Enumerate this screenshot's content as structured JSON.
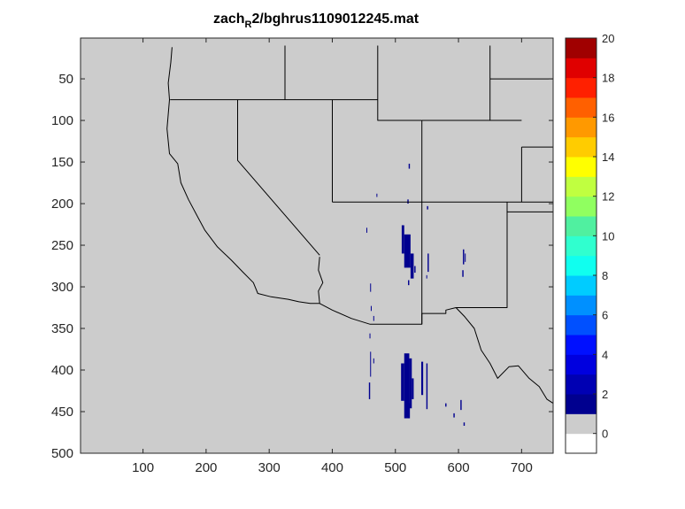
{
  "chart_data": {
    "type": "heatmap",
    "title": "zach_R2/bghrus1109012245.mat",
    "title_parts": {
      "before": "zach",
      "subscript": "R",
      "after": "2/bghrus1109012245.mat"
    },
    "xlabel": "",
    "ylabel": "",
    "xlim": [
      1,
      750
    ],
    "ylim": [
      500,
      1
    ],
    "x_reversed": false,
    "y_reversed": true,
    "xticks": [
      100,
      200,
      300,
      400,
      500,
      600,
      700
    ],
    "yticks": [
      50,
      100,
      150,
      200,
      250,
      300,
      350,
      400,
      450,
      500
    ],
    "grid": false,
    "background_value": 0,
    "background_color": "#cccccc",
    "colorbar": {
      "location": "right",
      "range": [
        -1,
        20
      ],
      "ticks": [
        0,
        2,
        4,
        6,
        8,
        10,
        12,
        14,
        16,
        18,
        20
      ],
      "segments": [
        {
          "from": -1,
          "to": 0,
          "color": "#ffffff"
        },
        {
          "from": 0,
          "to": 1,
          "color": "#cccccc"
        },
        {
          "from": 1,
          "to": 2,
          "color": "#00008f"
        },
        {
          "from": 2,
          "to": 3,
          "color": "#0000b3"
        },
        {
          "from": 3,
          "to": 4,
          "color": "#0000df"
        },
        {
          "from": 4,
          "to": 5,
          "color": "#0010ff"
        },
        {
          "from": 5,
          "to": 6,
          "color": "#0050ff"
        },
        {
          "from": 6,
          "to": 7,
          "color": "#0090ff"
        },
        {
          "from": 7,
          "to": 8,
          "color": "#00ccff"
        },
        {
          "from": 8,
          "to": 9,
          "color": "#10ffef"
        },
        {
          "from": 9,
          "to": 10,
          "color": "#30ffcf"
        },
        {
          "from": 10,
          "to": 11,
          "color": "#50f0a0"
        },
        {
          "from": 11,
          "to": 12,
          "color": "#90ff60"
        },
        {
          "from": 12,
          "to": 13,
          "color": "#c0ff40"
        },
        {
          "from": 13,
          "to": 14,
          "color": "#ffff00"
        },
        {
          "from": 14,
          "to": 15,
          "color": "#ffcc00"
        },
        {
          "from": 15,
          "to": 16,
          "color": "#ff9900"
        },
        {
          "from": 16,
          "to": 17,
          "color": "#ff6000"
        },
        {
          "from": 17,
          "to": 18,
          "color": "#ff2000"
        },
        {
          "from": 18,
          "to": 19,
          "color": "#e00000"
        },
        {
          "from": 19,
          "to": 20,
          "color": "#a00000"
        }
      ]
    },
    "echo_color": "#00008f",
    "echoes": [
      {
        "x": 521,
        "y": 152,
        "w": 2,
        "h": 6,
        "value": 1
      },
      {
        "x": 519,
        "y": 195,
        "w": 2,
        "h": 5,
        "value": 1
      },
      {
        "x": 470,
        "y": 188,
        "w": 1,
        "h": 4,
        "value": 1
      },
      {
        "x": 550,
        "y": 203,
        "w": 2,
        "h": 4,
        "value": 1
      },
      {
        "x": 454,
        "y": 229,
        "w": 1,
        "h": 6,
        "value": 1
      },
      {
        "x": 510,
        "y": 226,
        "w": 4,
        "h": 34,
        "value": 1
      },
      {
        "x": 514,
        "y": 237,
        "w": 10,
        "h": 40,
        "value": 1
      },
      {
        "x": 524,
        "y": 260,
        "w": 5,
        "h": 30,
        "value": 1
      },
      {
        "x": 530,
        "y": 275,
        "w": 2,
        "h": 8,
        "value": 1
      },
      {
        "x": 551,
        "y": 260,
        "w": 2,
        "h": 22,
        "value": 1
      },
      {
        "x": 549,
        "y": 286,
        "w": 1,
        "h": 4,
        "value": 1
      },
      {
        "x": 521,
        "y": 255,
        "w": 2,
        "h": 10,
        "value": 1
      },
      {
        "x": 520,
        "y": 292,
        "w": 2,
        "h": 6,
        "value": 1
      },
      {
        "x": 460,
        "y": 296,
        "w": 1,
        "h": 10,
        "value": 1
      },
      {
        "x": 461,
        "y": 323,
        "w": 1,
        "h": 6,
        "value": 1
      },
      {
        "x": 465,
        "y": 335,
        "w": 1,
        "h": 6,
        "value": 1
      },
      {
        "x": 459,
        "y": 356,
        "w": 1,
        "h": 6,
        "value": 1
      },
      {
        "x": 607,
        "y": 255,
        "w": 2,
        "h": 18,
        "value": 1
      },
      {
        "x": 610,
        "y": 260,
        "w": 1,
        "h": 10,
        "value": 1
      },
      {
        "x": 606,
        "y": 280,
        "w": 2,
        "h": 8,
        "value": 1
      },
      {
        "x": 460,
        "y": 378,
        "w": 1,
        "h": 30,
        "value": 1
      },
      {
        "x": 465,
        "y": 386,
        "w": 1,
        "h": 6,
        "value": 1
      },
      {
        "x": 458,
        "y": 415,
        "w": 2,
        "h": 20,
        "value": 1
      },
      {
        "x": 509,
        "y": 392,
        "w": 5,
        "h": 45,
        "value": 1
      },
      {
        "x": 514,
        "y": 380,
        "w": 8,
        "h": 78,
        "value": 1
      },
      {
        "x": 522,
        "y": 386,
        "w": 4,
        "h": 60,
        "value": 1
      },
      {
        "x": 526,
        "y": 410,
        "w": 3,
        "h": 25,
        "value": 1
      },
      {
        "x": 541,
        "y": 390,
        "w": 3,
        "h": 40,
        "value": 1
      },
      {
        "x": 549,
        "y": 392,
        "w": 2,
        "h": 55,
        "value": 1
      },
      {
        "x": 579,
        "y": 440,
        "w": 2,
        "h": 4,
        "value": 1
      },
      {
        "x": 592,
        "y": 452,
        "w": 2,
        "h": 5,
        "value": 1
      },
      {
        "x": 603,
        "y": 436,
        "w": 2,
        "h": 12,
        "value": 1
      },
      {
        "x": 608,
        "y": 463,
        "w": 2,
        "h": 4,
        "value": 1
      },
      {
        "x": 520,
        "y": 440,
        "w": 3,
        "h": 18,
        "value": 1
      }
    ],
    "boundaries": [
      {
        "name": "west-coast",
        "points": [
          [
            146,
            12
          ],
          [
            144,
            30
          ],
          [
            140,
            55
          ],
          [
            142,
            75
          ],
          [
            138,
            110
          ],
          [
            142,
            140
          ],
          [
            155,
            152
          ],
          [
            160,
            175
          ],
          [
            172,
            195
          ],
          [
            186,
            215
          ],
          [
            198,
            232
          ],
          [
            218,
            252
          ],
          [
            240,
            268
          ],
          [
            258,
            282
          ],
          [
            275,
            295
          ],
          [
            282,
            308
          ],
          [
            303,
            312
          ],
          [
            330,
            315
          ],
          [
            347,
            318
          ],
          [
            365,
            320
          ],
          [
            380,
            320
          ],
          [
            378,
            305
          ],
          [
            385,
            295
          ],
          [
            378,
            280
          ],
          [
            380,
            264
          ]
        ]
      },
      {
        "name": "ca-nv-border",
        "points": [
          [
            250,
            75
          ],
          [
            250,
            148
          ],
          [
            380,
            262
          ]
        ]
      },
      {
        "name": "border-40n",
        "points": [
          [
            143,
            75
          ],
          [
            472,
            75
          ]
        ]
      },
      {
        "name": "or-id-border",
        "points": [
          [
            325,
            10
          ],
          [
            325,
            75
          ]
        ]
      },
      {
        "name": "nv-ut-border",
        "points": [
          [
            400,
            75
          ],
          [
            400,
            198
          ]
        ]
      },
      {
        "name": "ut-wy-border",
        "points": [
          [
            472,
            10
          ],
          [
            472,
            100
          ],
          [
            542,
            100
          ]
        ]
      },
      {
        "name": "wy-ne-border",
        "points": [
          [
            650,
            10
          ],
          [
            650,
            100
          ]
        ]
      },
      {
        "name": "wy-co-north",
        "points": [
          [
            542,
            100
          ],
          [
            700,
            100
          ]
        ]
      },
      {
        "name": "co-ne-border",
        "points": [
          [
            650,
            50
          ],
          [
            750,
            50
          ]
        ]
      },
      {
        "name": "ne-ks-border",
        "points": [
          [
            700,
            132
          ],
          [
            750,
            132
          ]
        ]
      },
      {
        "name": "co-ks-border",
        "points": [
          [
            700,
            132
          ],
          [
            700,
            198
          ]
        ]
      },
      {
        "name": "border-37n",
        "points": [
          [
            400,
            198
          ],
          [
            750,
            198
          ]
        ]
      },
      {
        "name": "az-nm-border",
        "points": [
          [
            542,
            100
          ],
          [
            542,
            345
          ]
        ]
      },
      {
        "name": "nm-ok-tx-border",
        "points": [
          [
            677,
            198
          ],
          [
            677,
            210
          ],
          [
            750,
            210
          ]
        ]
      },
      {
        "name": "nm-tx-border",
        "points": [
          [
            677,
            198
          ],
          [
            677,
            325
          ],
          [
            596,
            325
          ]
        ]
      },
      {
        "name": "mexico-border",
        "points": [
          [
            380,
            320
          ],
          [
            400,
            328
          ],
          [
            430,
            338
          ],
          [
            460,
            345
          ],
          [
            500,
            345
          ],
          [
            542,
            345
          ],
          [
            542,
            332
          ],
          [
            580,
            332
          ],
          [
            580,
            328
          ],
          [
            596,
            325
          ],
          [
            610,
            336
          ],
          [
            625,
            350
          ],
          [
            636,
            376
          ],
          [
            650,
            392
          ],
          [
            662,
            410
          ],
          [
            680,
            396
          ],
          [
            695,
            395
          ],
          [
            712,
            410
          ],
          [
            728,
            420
          ],
          [
            740,
            435
          ],
          [
            750,
            440
          ]
        ]
      }
    ]
  }
}
